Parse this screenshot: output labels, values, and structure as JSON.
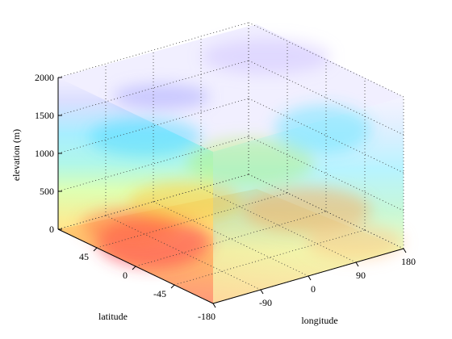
{
  "chart_data": {
    "type": "volume",
    "xlabel": "longitude",
    "ylabel": "latitude",
    "zlabel": "elevation (m)",
    "xlim": [
      -180,
      180
    ],
    "ylim": [
      -90,
      90
    ],
    "zlim": [
      0,
      2000
    ],
    "x_ticks": [
      "-180",
      "-90",
      "0",
      "90",
      "180"
    ],
    "y_ticks": [
      "-45",
      "0",
      "45"
    ],
    "z_ticks": [
      "0",
      "500",
      "1000",
      "1500",
      "2000"
    ],
    "grid": true,
    "colormap": [
      "#ff5050",
      "#ff9a40",
      "#ffd040",
      "#f0ff50",
      "#a0ff70",
      "#50e8c8",
      "#40e8ff",
      "#a0c0ff",
      "#c8b0ff"
    ]
  }
}
